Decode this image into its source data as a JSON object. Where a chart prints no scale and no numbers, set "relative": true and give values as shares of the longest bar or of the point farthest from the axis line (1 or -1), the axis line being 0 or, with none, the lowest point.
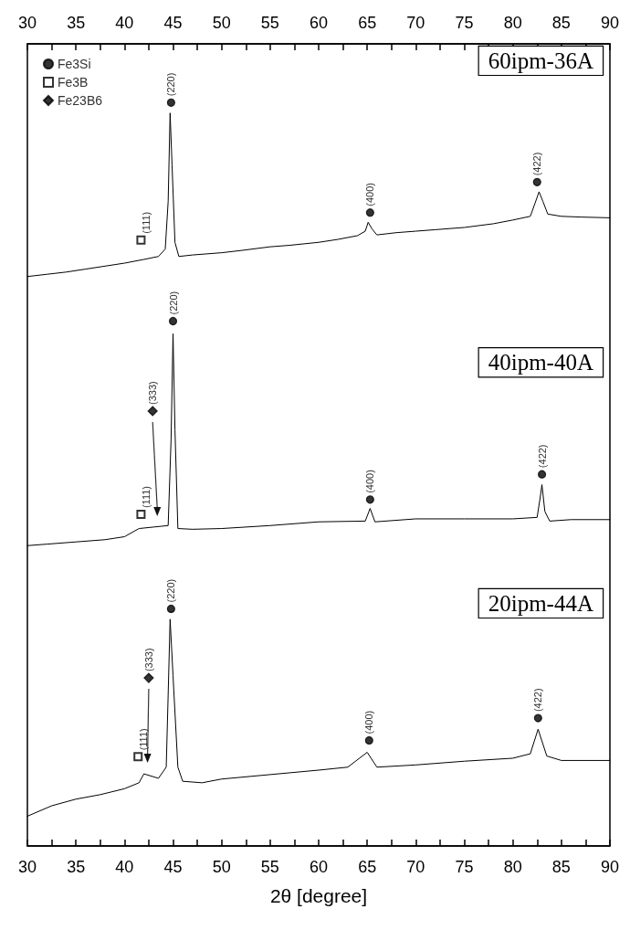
{
  "chart_data": {
    "type": "line",
    "relative": true,
    "xlabel": "2θ [degree]",
    "xlim": [
      30,
      90
    ],
    "x2lim": [
      30,
      90
    ],
    "xticks": [
      30,
      {
        "value": 32.5,
        "label": null
      },
      35,
      {
        "value": 37.5,
        "label": null
      },
      40,
      {
        "value": 42.5,
        "label": null
      },
      45,
      {
        "value": 47.5,
        "label": null
      },
      50,
      {
        "value": 52.5,
        "label": null
      },
      55,
      {
        "value": 57.5,
        "label": null
      },
      60,
      {
        "value": 62.5,
        "label": null
      },
      65,
      {
        "value": 67.5,
        "label": null
      },
      70,
      {
        "value": 72.5,
        "label": null
      },
      75,
      {
        "value": 77.5,
        "label": null
      },
      80,
      {
        "value": 82.5,
        "label": null
      },
      85,
      {
        "value": 87.5,
        "label": null
      },
      90
    ],
    "x2ticks": [
      30,
      {
        "value": 32.5,
        "label": null
      },
      35,
      {
        "value": 37.5,
        "label": null
      },
      40,
      {
        "value": 42.5,
        "label": null
      },
      45,
      {
        "value": 47.5,
        "label": null
      },
      50,
      {
        "value": 52.5,
        "label": null
      },
      55,
      {
        "value": 57.5,
        "label": null
      },
      60,
      {
        "value": 62.5,
        "label": null
      },
      65,
      {
        "value": 67.5,
        "label": null
      },
      70,
      {
        "value": 72.5,
        "label": null
      },
      75,
      {
        "value": 77.5,
        "label": null
      },
      80,
      {
        "value": 82.5,
        "label": null
      },
      85,
      {
        "value": 87.5,
        "label": null
      },
      90
    ],
    "legend": "top left",
    "marker": "none",
    "series": [
      {
        "name": "60ipm-36A",
        "color": "#000000",
        "x": [
          30,
          32,
          34,
          36,
          38,
          40,
          42,
          43.5,
          44.2,
          44.5,
          44.7,
          44.9,
          45.2,
          45.6,
          47,
          50,
          52,
          55,
          57,
          60,
          62,
          64,
          64.8,
          65.1,
          65.5,
          66,
          68,
          70,
          72,
          75,
          78,
          80,
          81.8,
          82.3,
          82.7,
          83.1,
          83.6,
          85,
          87,
          90
        ],
        "values": [
          0.766,
          0.769,
          0.772,
          0.776,
          0.78,
          0.784,
          0.789,
          0.793,
          0.803,
          0.867,
          0.986,
          0.916,
          0.812,
          0.793,
          0.795,
          0.798,
          0.801,
          0.806,
          0.808,
          0.812,
          0.816,
          0.821,
          0.827,
          0.839,
          0.83,
          0.822,
          0.825,
          0.827,
          0.829,
          0.832,
          0.837,
          0.842,
          0.847,
          0.865,
          0.88,
          0.867,
          0.85,
          0.847,
          0.846,
          0.845
        ]
      },
      {
        "name": "40ipm-40A",
        "color": "#000000",
        "x": [
          30,
          32,
          35,
          38,
          40,
          41.5,
          43,
          44.5,
          44.8,
          45.0,
          45.2,
          45.5,
          47,
          50,
          55,
          60,
          64.8,
          65.3,
          65.8,
          70,
          75,
          80,
          82.5,
          82.8,
          83.0,
          83.3,
          83.8,
          86,
          90
        ],
        "values": [
          0.404,
          0.406,
          0.409,
          0.412,
          0.416,
          0.427,
          0.429,
          0.431,
          0.547,
          0.689,
          0.56,
          0.427,
          0.426,
          0.427,
          0.431,
          0.436,
          0.437,
          0.454,
          0.436,
          0.44,
          0.44,
          0.44,
          0.442,
          0.467,
          0.486,
          0.45,
          0.437,
          0.439,
          0.439
        ]
      },
      {
        "name": "20ipm-44A",
        "color": "#000000",
        "x": [
          30,
          32.5,
          35,
          37.5,
          40,
          41.5,
          42,
          43.5,
          44.3,
          44.5,
          44.7,
          45.0,
          45.5,
          46,
          48,
          50,
          55,
          60,
          63,
          65,
          66,
          70,
          75,
          80,
          81.8,
          82.6,
          83.5,
          85,
          90
        ],
        "values": [
          0.04,
          0.054,
          0.063,
          0.069,
          0.077,
          0.085,
          0.097,
          0.091,
          0.106,
          0.204,
          0.305,
          0.229,
          0.106,
          0.087,
          0.085,
          0.09,
          0.096,
          0.102,
          0.106,
          0.126,
          0.106,
          0.109,
          0.114,
          0.118,
          0.124,
          0.157,
          0.121,
          0.115,
          0.115
        ]
      },
      {
        "name": "Fe3Si",
        "type": "scatter",
        "marker": "circle",
        "color": "#000000",
        "x": [
          44.8,
          65.3,
          82.5,
          45.0,
          65.3,
          83.0,
          44.8,
          65.2,
          82.6
        ],
        "values": [
          1.0,
          0.852,
          0.893,
          0.706,
          0.466,
          0.5,
          0.319,
          0.142,
          0.172
        ]
      },
      {
        "name": "Fe3B",
        "type": "scatter",
        "marker": "square",
        "color": "#000000",
        "x": [
          41.7,
          41.7,
          41.4
        ],
        "values": [
          0.815,
          0.446,
          0.12
        ]
      },
      {
        "name": "Fe23B6",
        "type": "scatter",
        "marker": "diamond",
        "color": "#000000",
        "x": [
          42.9,
          42.5
        ],
        "values": [
          0.585,
          0.226
        ]
      }
    ],
    "annotations": [
      {
        "text": "(220)",
        "x": 44.8,
        "y": 1.0
      },
      {
        "text": "(400)",
        "x": 65.3,
        "y": 0.852
      },
      {
        "text": "(422)",
        "x": 82.5,
        "y": 0.893
      },
      {
        "text": "(111)",
        "x": 42.2,
        "y": 0.815
      },
      {
        "text": "(220)",
        "x": 45.0,
        "y": 0.706
      },
      {
        "text": "(400)",
        "x": 65.3,
        "y": 0.466
      },
      {
        "text": "(422)",
        "x": 83.0,
        "y": 0.5
      },
      {
        "text": "(111)",
        "x": 42.2,
        "y": 0.446
      },
      {
        "text": "(333)",
        "x": 42.9,
        "y": 0.585
      },
      {
        "text": "(220)",
        "x": 44.8,
        "y": 0.319
      },
      {
        "text": "(400)",
        "x": 65.2,
        "y": 0.142
      },
      {
        "text": "(422)",
        "x": 82.6,
        "y": 0.172
      },
      {
        "text": "(111)",
        "x": 41.9,
        "y": 0.12
      },
      {
        "text": "(333)",
        "x": 42.5,
        "y": 0.226
      }
    ]
  }
}
